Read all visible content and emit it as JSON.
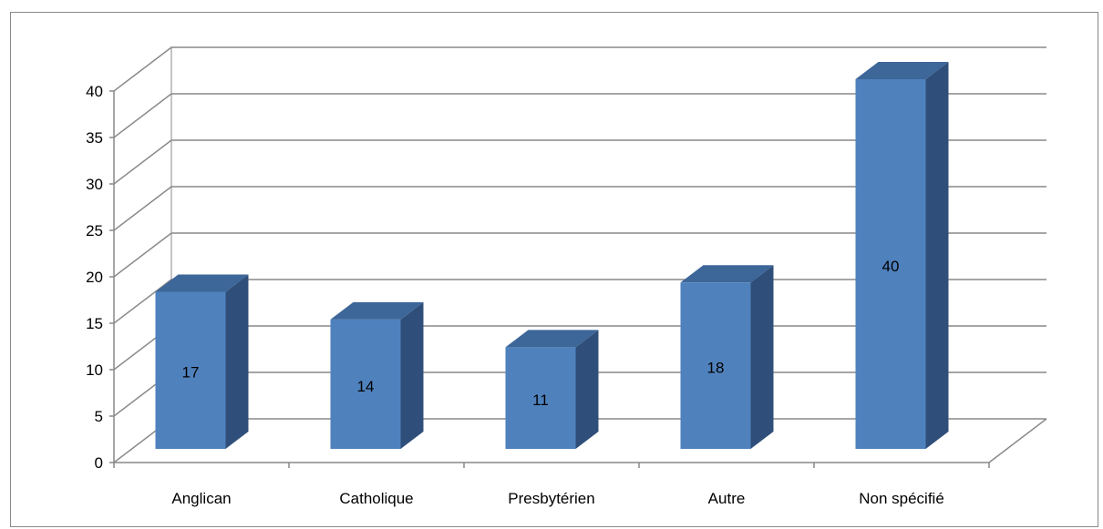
{
  "chart_data": {
    "type": "bar",
    "title": "",
    "xlabel": "",
    "ylabel": "",
    "categories": [
      "Anglican",
      "Catholique",
      "Presbytérien",
      "Autre",
      "Non spécifié"
    ],
    "values": [
      17,
      14,
      11,
      18,
      40
    ],
    "data_labels": [
      "17",
      "14",
      "11",
      "18",
      "40"
    ],
    "ylim": [
      0,
      40
    ],
    "yticks": [
      "0",
      "5",
      "10",
      "15",
      "20",
      "25",
      "30",
      "35",
      "40"
    ],
    "grid": true,
    "legend": "none",
    "style": "3d-column"
  },
  "colors": {
    "bar_front": "#4f81bd",
    "bar_top": "#3d6699",
    "bar_side": "#2f4f7a",
    "grid": "#898989",
    "axis": "#898989"
  }
}
